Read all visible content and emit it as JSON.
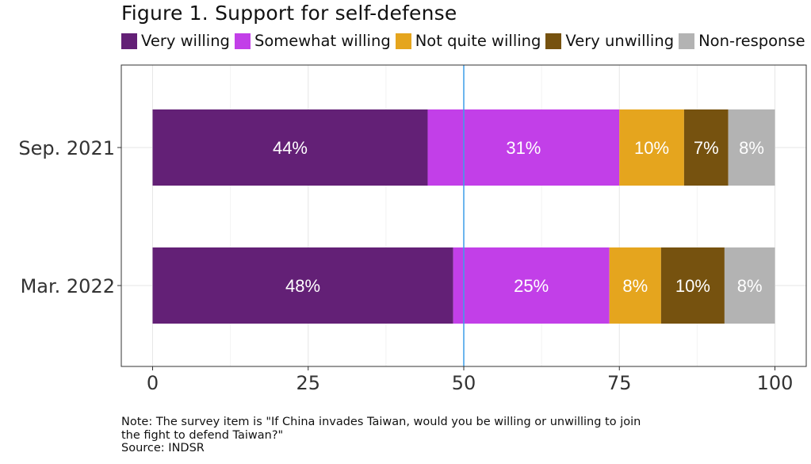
{
  "title": "Figure 1. Support for self-defense",
  "legend": [
    {
      "label": "Very willing",
      "color": "#632076"
    },
    {
      "label": "Somewhat willing",
      "color": "#c23fe8"
    },
    {
      "label": "Not quite willing",
      "color": "#e5a51e"
    },
    {
      "label": "Very unwilling",
      "color": "#76520f"
    },
    {
      "label": "Non-response",
      "color": "#b3b3b3"
    }
  ],
  "chart_data": {
    "type": "bar",
    "orientation": "horizontal",
    "stacked": true,
    "categories": [
      "Sep. 2021",
      "Mar. 2022"
    ],
    "series": [
      {
        "name": "Very willing",
        "color": "#632076",
        "values": [
          44.2,
          48.3
        ],
        "labels": [
          "44%",
          "48%"
        ]
      },
      {
        "name": "Somewhat willing",
        "color": "#c23fe8",
        "values": [
          30.8,
          25.1
        ],
        "labels": [
          "31%",
          "25%"
        ]
      },
      {
        "name": "Not quite willing",
        "color": "#e5a51e",
        "values": [
          10.4,
          8.3
        ],
        "labels": [
          "10%",
          "8%"
        ]
      },
      {
        "name": "Very unwilling",
        "color": "#76520f",
        "values": [
          7.1,
          10.2
        ],
        "labels": [
          "7%",
          "10%"
        ]
      },
      {
        "name": "Non-response",
        "color": "#b3b3b3",
        "values": [
          7.5,
          8.1
        ],
        "labels": [
          "8%",
          "8%"
        ]
      }
    ],
    "xlim": [
      0,
      100
    ],
    "xticks": [
      0,
      25,
      50,
      75,
      100
    ],
    "reference_line": 50,
    "reference_line_color": "#3c9ee8",
    "grid": true,
    "legend_position": "top"
  },
  "note": {
    "line1": "Note: The survey item is \"If China invades Taiwan, would you be willing or unwilling to join",
    "line2": "the fight to defend Taiwan?\"",
    "source": "Source: INDSR"
  }
}
